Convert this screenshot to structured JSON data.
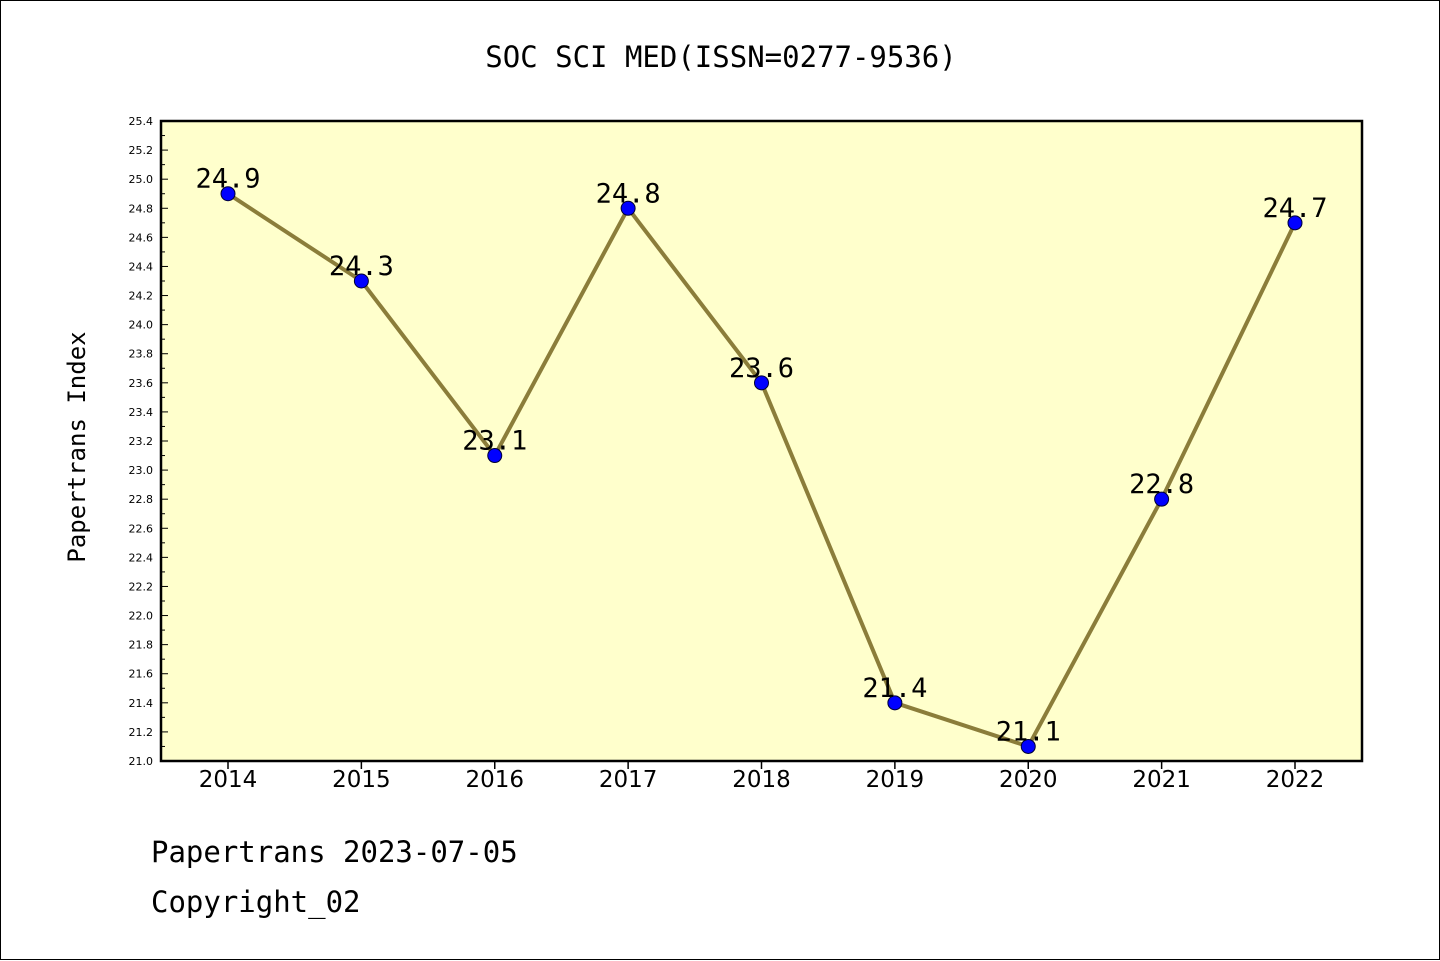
{
  "footer": {
    "date_text": "Papertrans 2023-07-05",
    "copyright_text": "Copyright_02"
  },
  "colors": {
    "plot_background": "#ffffcc",
    "line": "#8b7d3a",
    "marker": "#0000ff",
    "axis": "#000000"
  },
  "chart_data": {
    "type": "line",
    "title": "SOC SCI MED(ISSN=0277-9536)",
    "xlabel": "",
    "ylabel": "Papertrans Index",
    "categories": [
      "2014",
      "2015",
      "2016",
      "2017",
      "2018",
      "2019",
      "2020",
      "2021",
      "2022"
    ],
    "series": [
      {
        "values": [
          24.9,
          24.3,
          23.1,
          24.8,
          23.6,
          21.4,
          21.1,
          22.8,
          24.7
        ],
        "data_labels": [
          "24.9",
          "24.3",
          "23.1",
          "24.8",
          "23.6",
          "21.4",
          "21.1",
          "22.8",
          "24.7"
        ]
      }
    ],
    "ylim": [
      21.0,
      25.4
    ],
    "yticks": [
      "21.0",
      "21.2",
      "21.4",
      "21.6",
      "21.8",
      "22.0",
      "22.2",
      "22.4",
      "22.6",
      "22.8",
      "23.0",
      "23.2",
      "23.4",
      "23.6",
      "23.8",
      "24.0",
      "24.2",
      "24.4",
      "24.6",
      "24.8",
      "25.0",
      "25.2",
      "25.4"
    ],
    "grid": false,
    "legend": "none"
  }
}
